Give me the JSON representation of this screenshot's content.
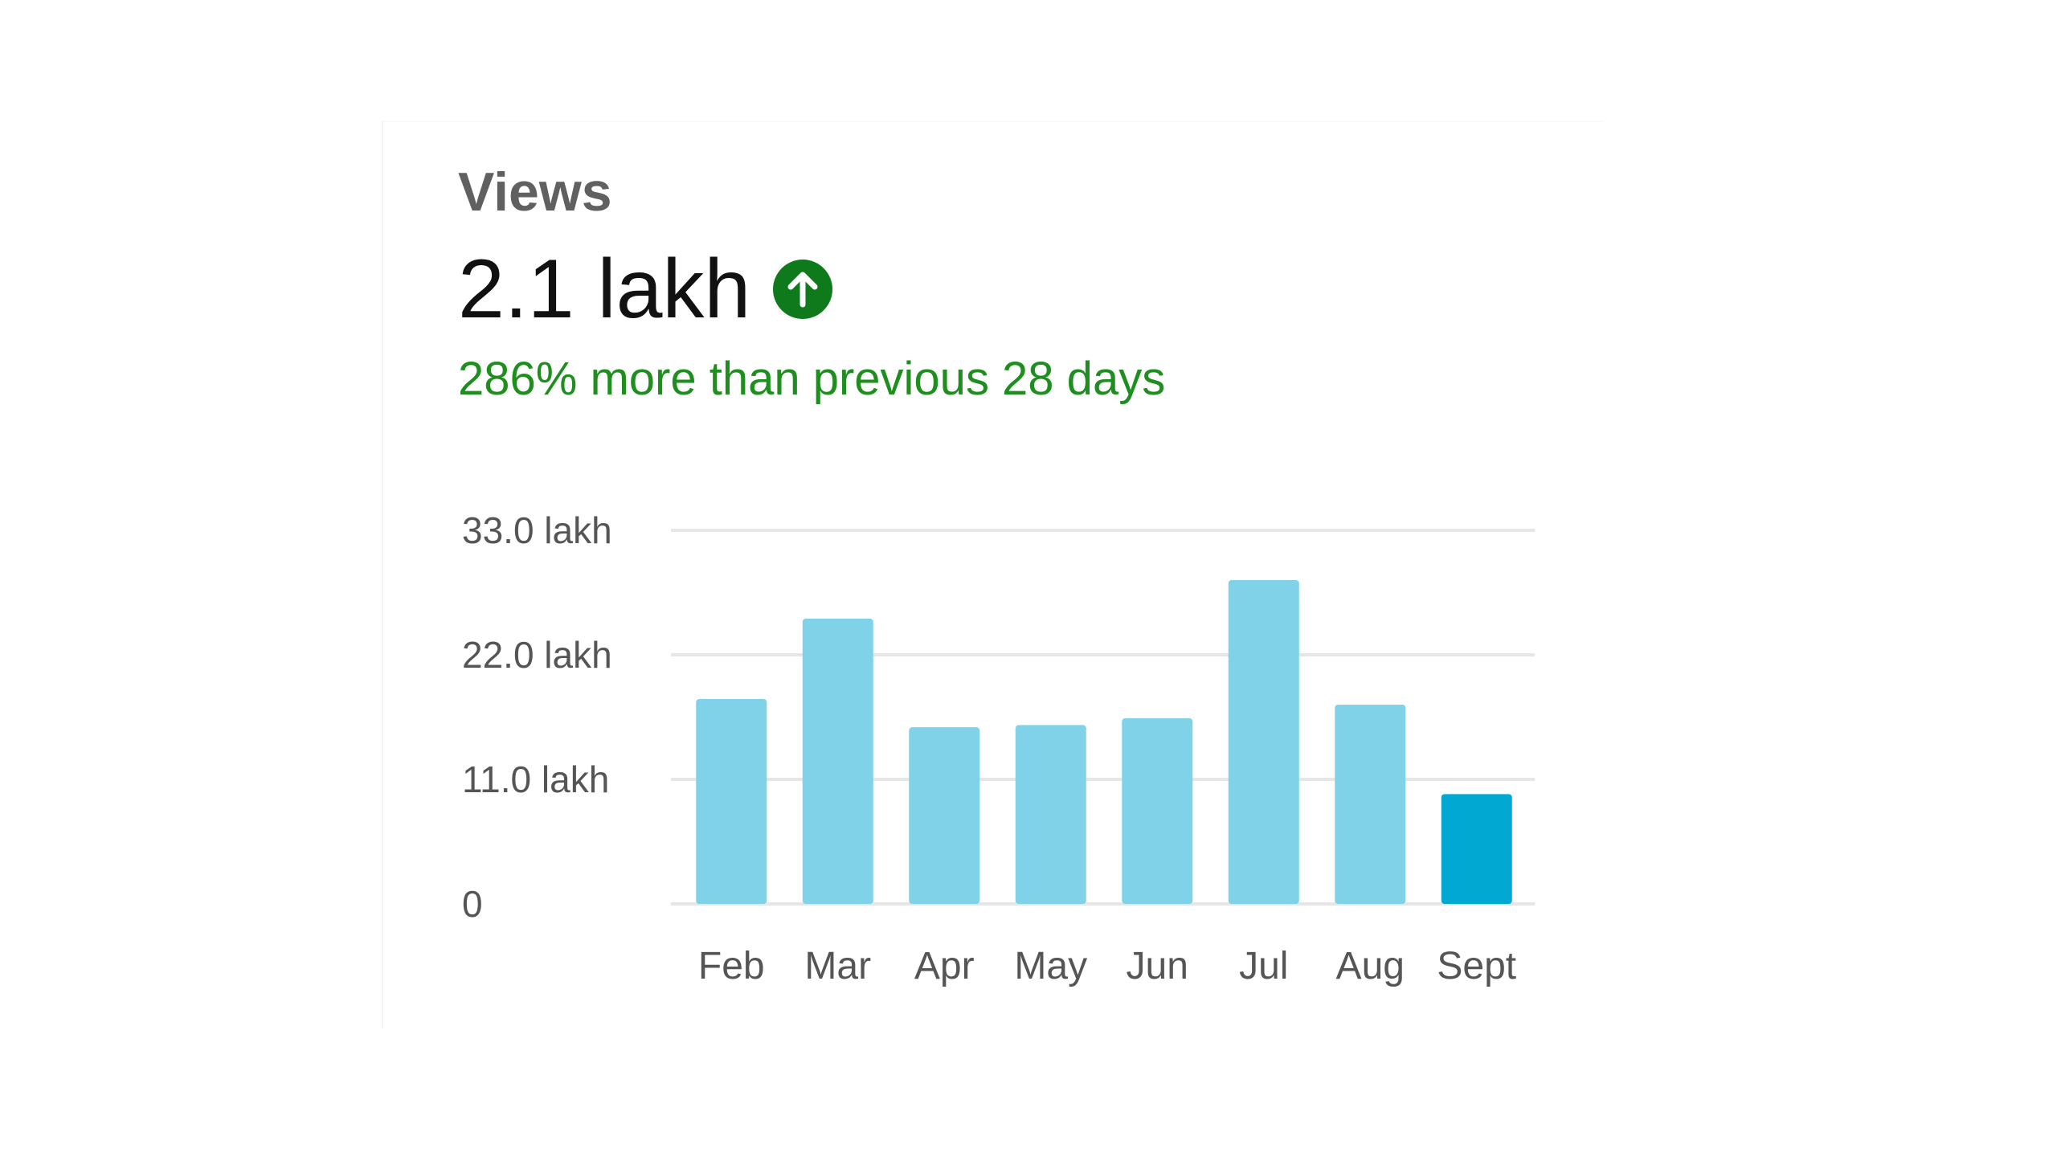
{
  "header": {
    "title": "Views",
    "value": "2.1 lakh",
    "delta_text": "286% more than previous 28 days"
  },
  "colors": {
    "bar": "#80d2e8",
    "bar_highlight": "#00a8d2",
    "trend_up": "#0f7a1b",
    "delta_text": "#1e8e1e",
    "gridline": "#e6e6e6"
  },
  "icons": {
    "trend": "arrow-up-circle-icon"
  },
  "chart_data": {
    "type": "bar",
    "categories": [
      "Feb",
      "Mar",
      "Apr",
      "May",
      "Jun",
      "Jul",
      "Aug",
      "Sept"
    ],
    "values": [
      18.1,
      25.2,
      15.6,
      15.8,
      16.4,
      28.6,
      17.6,
      9.7
    ],
    "value_unit": "lakh",
    "highlight_index": 7,
    "ylim": [
      0,
      33.0
    ],
    "yticks": [
      {
        "value": 0,
        "label": "0"
      },
      {
        "value": 11.0,
        "label": "11.0 lakh"
      },
      {
        "value": 22.0,
        "label": "22.0 lakh"
      },
      {
        "value": 33.0,
        "label": "33.0 lakh"
      }
    ],
    "grid": true,
    "title": "",
    "xlabel": "",
    "ylabel": ""
  }
}
